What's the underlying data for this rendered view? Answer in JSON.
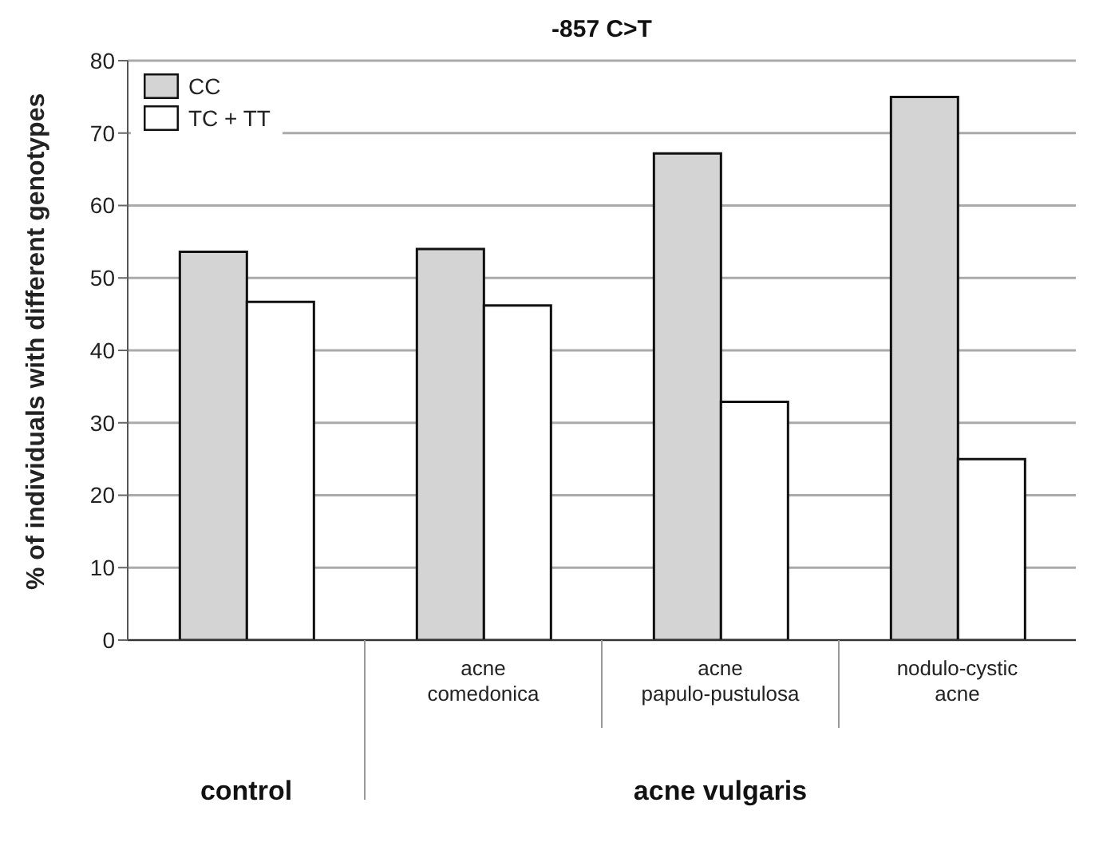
{
  "chart_data": {
    "type": "bar",
    "title": "-857 C>T",
    "ylabel": "% of individuals with different genotypes",
    "categories": [
      null,
      "acne comedonica",
      "acne papulo-pustulosa",
      "nodulo-cystic acne"
    ],
    "series": [
      {
        "name": "CC",
        "color": "#d4d4d4",
        "values": [
          53.6,
          54,
          67.2,
          75
        ]
      },
      {
        "name": "TC + TT",
        "color": "#ffffff",
        "values": [
          46.7,
          46.2,
          32.9,
          25
        ]
      }
    ],
    "annotations": [
      "control",
      "acne vulgaris"
    ],
    "ylim": [
      0,
      80
    ],
    "yticks": [
      0,
      10,
      20,
      30,
      40,
      50,
      60,
      70,
      80
    ],
    "grid": "y",
    "legend": "top left"
  }
}
